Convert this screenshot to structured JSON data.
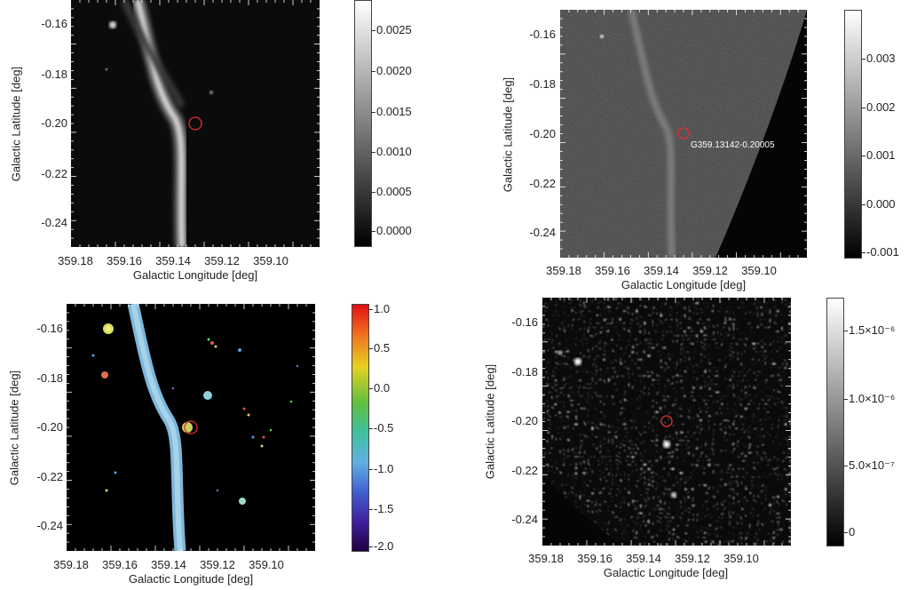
{
  "panels": [
    {
      "id": "top-left",
      "xticks": [
        "359.18",
        "359.16",
        "359.14",
        "359.12",
        "359.10"
      ],
      "yticks": [
        "-0.16",
        "-0.18",
        "-0.20",
        "-0.22",
        "-0.24"
      ],
      "xlabel": "Galactic Longitude [deg]",
      "ylabel": "Galactic Latitude [deg]",
      "colorbar_ticks": [
        "0.0025",
        "0.0020",
        "0.0015",
        "0.0010",
        "0.0005",
        "0.0000"
      ],
      "colormap": "grayscale",
      "annotation": ""
    },
    {
      "id": "top-right",
      "xticks": [
        "359.18",
        "359.16",
        "359.14",
        "359.12",
        "359.10"
      ],
      "yticks": [
        "-0.16",
        "-0.18",
        "-0.20",
        "-0.22",
        "-0.24"
      ],
      "xlabel": "Galactic Longitude [deg]",
      "ylabel": "Galactic Latitude [deg]",
      "colorbar_ticks": [
        "0.003",
        "0.002",
        "0.001",
        "0.000",
        "-0.001"
      ],
      "colormap": "grayscale",
      "annotation": "G359.13142-0.20005"
    },
    {
      "id": "bottom-left",
      "xticks": [
        "359.18",
        "359.16",
        "359.14",
        "359.12",
        "359.10"
      ],
      "yticks": [
        "-0.16",
        "-0.18",
        "-0.20",
        "-0.22",
        "-0.24"
      ],
      "xlabel": "Galactic Longitude [deg]",
      "ylabel": "Galactic Latitude [deg]",
      "colorbar_ticks": [
        "1.0",
        "0.5",
        "0.0",
        "-0.5",
        "-1.0",
        "-1.5",
        "-2.0"
      ],
      "colormap": "rainbow",
      "annotation": ""
    },
    {
      "id": "bottom-right",
      "xticks": [
        "359.18",
        "359.16",
        "359.14",
        "359.12",
        "359.10"
      ],
      "yticks": [
        "-0.16",
        "-0.18",
        "-0.20",
        "-0.22",
        "-0.24"
      ],
      "xlabel": "Galactic Longitude [deg]",
      "ylabel": "Galactic Latitude [deg]",
      "colorbar_ticks": [
        "1.5×10⁻⁶",
        "1.0×10⁻⁶",
        "5.0×10⁻⁷",
        "0"
      ],
      "colormap": "grayscale",
      "annotation": ""
    }
  ],
  "marker": {
    "label": "red circle source marker",
    "color": "#e03030"
  }
}
